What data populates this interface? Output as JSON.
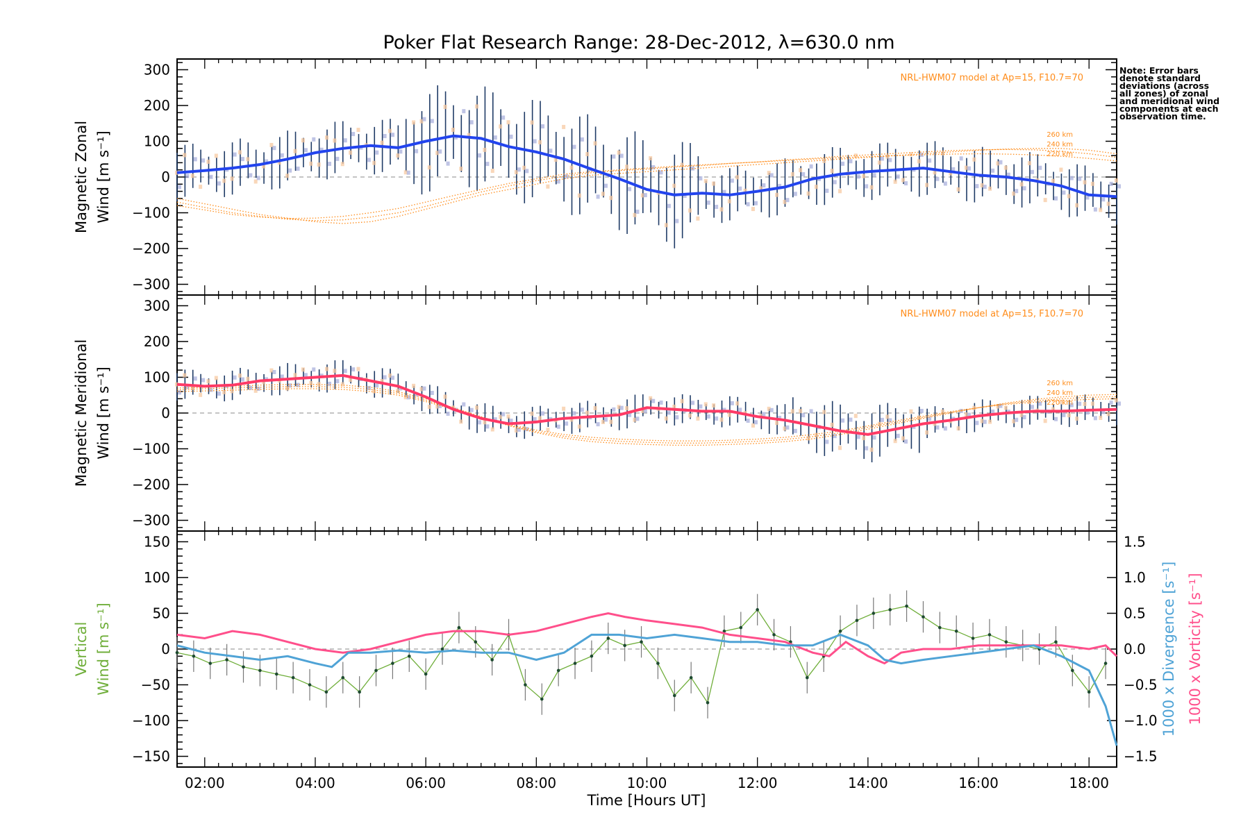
{
  "title": "Poker Flat Research Range: 28-Dec-2012, λ=630.0 nm",
  "note": "Note: Error bars denote standard deviations (across all zones) of zonal and meridional wind components at each observation time.",
  "colors": {
    "zonal": "#2244ee",
    "meridional": "#ff3a66",
    "vertical": "#6fae3a",
    "divergence": "#4fa3d6",
    "vorticity": "#ff4f8b",
    "model": "#ff8c1a",
    "errbar": "#1f3b66"
  },
  "xaxis": {
    "label": "Time [Hours UT]",
    "ticks": [
      "02:00",
      "04:00",
      "06:00",
      "08:00",
      "10:00",
      "12:00",
      "14:00",
      "16:00",
      "18:00"
    ]
  },
  "chart_data": [
    {
      "type": "line",
      "panel": "zonal",
      "ylabel_1": "Magnetic Zonal",
      "ylabel_2": "Wind [m s⁻¹]",
      "ylim": [
        -330,
        330
      ],
      "yticks": [
        "300",
        "200",
        "100",
        "0",
        "−100",
        "−200",
        "−300"
      ],
      "model_label": "NRL-HWM07 model at Ap=15, F10.7=70",
      "model_alt_labels": [
        "260 km",
        "240 km",
        "220 km"
      ],
      "x": [
        1.5,
        2,
        2.5,
        3,
        3.5,
        4,
        4.5,
        5,
        5.5,
        6,
        6.5,
        7,
        7.5,
        8,
        8.5,
        9,
        9.5,
        10,
        10.5,
        11,
        11.5,
        12,
        12.5,
        13,
        13.5,
        14,
        14.5,
        15,
        15.5,
        16,
        16.5,
        17,
        17.5,
        18,
        18.5
      ],
      "series": [
        {
          "values": [
            12,
            18,
            25,
            35,
            50,
            68,
            80,
            88,
            82,
            100,
            115,
            108,
            85,
            70,
            50,
            22,
            -5,
            -35,
            -50,
            -45,
            -50,
            -40,
            -28,
            -5,
            8,
            15,
            20,
            25,
            15,
            5,
            0,
            -10,
            -25,
            -50,
            -55
          ]
        }
      ],
      "model_series": [
        {
          "values": [
            -60,
            -75,
            -90,
            -105,
            -115,
            -125,
            -130,
            -125,
            -110,
            -90,
            -70,
            -50,
            -35,
            -20,
            -5,
            5,
            10,
            15,
            20,
            25,
            30,
            35,
            40,
            45,
            50,
            55,
            60,
            65,
            70,
            75,
            78,
            80,
            80,
            75,
            65
          ]
        },
        {
          "values": [
            -70,
            -85,
            -100,
            -110,
            -118,
            -122,
            -120,
            -112,
            -100,
            -82,
            -62,
            -42,
            -25,
            -10,
            2,
            12,
            18,
            22,
            28,
            32,
            38,
            42,
            48,
            52,
            58,
            62,
            66,
            70,
            74,
            76,
            77,
            76,
            72,
            65,
            55
          ]
        },
        {
          "values": [
            -80,
            -92,
            -105,
            -112,
            -116,
            -115,
            -110,
            -100,
            -88,
            -70,
            -52,
            -35,
            -18,
            -5,
            8,
            15,
            20,
            25,
            30,
            34,
            38,
            42,
            46,
            50,
            54,
            57,
            60,
            62,
            64,
            65,
            64,
            62,
            58,
            52,
            45
          ]
        }
      ]
    },
    {
      "type": "line",
      "panel": "meridional",
      "ylabel_1": "Magnetic Meridional",
      "ylabel_2": "Wind [m s⁻¹]",
      "ylim": [
        -330,
        330
      ],
      "yticks": [
        "300",
        "200",
        "100",
        "0",
        "−100",
        "−200",
        "−300"
      ],
      "model_label": "NRL-HWM07 model at Ap=15, F10.7=70",
      "model_alt_labels": [
        "260 km",
        "240 km",
        "220 km"
      ],
      "x": [
        1.5,
        2,
        2.5,
        3,
        3.5,
        4,
        4.5,
        5,
        5.5,
        6,
        6.5,
        7,
        7.5,
        8,
        8.5,
        9,
        9.5,
        10,
        10.5,
        11,
        11.5,
        12,
        12.5,
        13,
        13.5,
        14,
        14.5,
        15,
        15.5,
        16,
        16.5,
        17,
        17.5,
        18,
        18.5
      ],
      "series": [
        {
          "values": [
            80,
            75,
            78,
            90,
            95,
            100,
            105,
            90,
            75,
            45,
            10,
            -15,
            -30,
            -25,
            -15,
            -10,
            -5,
            15,
            10,
            5,
            5,
            -10,
            -20,
            -35,
            -50,
            -60,
            -45,
            -30,
            -20,
            -8,
            0,
            5,
            5,
            8,
            10
          ]
        }
      ],
      "model_series": [
        {
          "values": [
            70,
            72,
            75,
            78,
            80,
            80,
            78,
            72,
            60,
            40,
            15,
            -10,
            -35,
            -55,
            -70,
            -80,
            -85,
            -88,
            -90,
            -90,
            -88,
            -85,
            -80,
            -72,
            -60,
            -45,
            -30,
            -15,
            0,
            15,
            28,
            38,
            45,
            50,
            52
          ]
        },
        {
          "values": [
            65,
            68,
            70,
            72,
            74,
            74,
            72,
            66,
            55,
            36,
            12,
            -12,
            -35,
            -52,
            -65,
            -74,
            -79,
            -82,
            -84,
            -84,
            -82,
            -79,
            -74,
            -66,
            -55,
            -40,
            -26,
            -12,
            2,
            15,
            26,
            34,
            40,
            44,
            46
          ]
        },
        {
          "values": [
            60,
            62,
            64,
            66,
            68,
            68,
            66,
            60,
            50,
            32,
            10,
            -12,
            -32,
            -48,
            -60,
            -68,
            -73,
            -76,
            -78,
            -78,
            -76,
            -73,
            -68,
            -60,
            -50,
            -36,
            -22,
            -9,
            4,
            15,
            24,
            30,
            35,
            38,
            40
          ]
        }
      ]
    },
    {
      "type": "line",
      "panel": "vertical",
      "ylabel_1": "Vertical",
      "ylabel_2": "Wind [m s⁻¹]",
      "ylabel_right_1": "1000 x Divergence [s⁻¹]",
      "ylabel_right_2": "1000 x Vorticity [s⁻¹]",
      "ylim": [
        -165,
        165
      ],
      "y2lim": [
        -1.65,
        1.65
      ],
      "yticks": [
        "150",
        "100",
        "50",
        "0",
        "−50",
        "−100",
        "−150"
      ],
      "y2ticks": [
        "1.5",
        "1.0",
        "0.5",
        "0.0",
        "−0.5",
        "−1.0",
        "−1.5"
      ],
      "series": [
        {
          "name": "Vertical Wind",
          "x": [
            1.5,
            1.8,
            2.1,
            2.4,
            2.7,
            3.0,
            3.3,
            3.6,
            3.9,
            4.2,
            4.5,
            4.8,
            5.1,
            5.4,
            5.7,
            6.0,
            6.3,
            6.6,
            6.9,
            7.2,
            7.5,
            7.8,
            8.1,
            8.4,
            8.7,
            9.0,
            9.3,
            9.6,
            9.9,
            10.2,
            10.5,
            10.8,
            11.1,
            11.4,
            11.7,
            12.0,
            12.3,
            12.6,
            12.9,
            13.2,
            13.5,
            13.8,
            14.1,
            14.4,
            14.7,
            15.0,
            15.3,
            15.6,
            15.9,
            16.2,
            16.5,
            16.8,
            17.1,
            17.4,
            17.7,
            18.0,
            18.3
          ],
          "values": [
            -5,
            -10,
            -20,
            -15,
            -25,
            -30,
            -35,
            -40,
            -50,
            -60,
            -40,
            -60,
            -30,
            -20,
            -10,
            -35,
            0,
            30,
            10,
            -15,
            20,
            -50,
            -70,
            -30,
            -20,
            -10,
            15,
            5,
            10,
            -20,
            -65,
            -40,
            -75,
            25,
            30,
            55,
            20,
            10,
            -40,
            -10,
            25,
            40,
            50,
            55,
            60,
            45,
            30,
            25,
            15,
            20,
            10,
            5,
            0,
            10,
            -30,
            -60,
            -20
          ]
        },
        {
          "name": "Divergence",
          "x": [
            1.5,
            2.0,
            2.5,
            3.0,
            3.5,
            4.0,
            4.3,
            4.6,
            5.0,
            5.5,
            6.0,
            6.5,
            7.0,
            7.5,
            8.0,
            8.5,
            9.0,
            9.5,
            10.0,
            10.5,
            11.0,
            11.5,
            12.0,
            12.5,
            13.0,
            13.5,
            14.0,
            14.3,
            14.6,
            15.0,
            15.5,
            16.0,
            16.5,
            17.0,
            17.5,
            18.0,
            18.3,
            18.5
          ],
          "values": [
            0.05,
            -0.05,
            -0.1,
            -0.15,
            -0.1,
            -0.2,
            -0.25,
            -0.05,
            -0.05,
            -0.02,
            -0.05,
            -0.02,
            -0.05,
            -0.05,
            -0.15,
            -0.05,
            0.2,
            0.2,
            0.15,
            0.2,
            0.15,
            0.1,
            0.1,
            0.05,
            0.05,
            0.2,
            0.05,
            -0.15,
            -0.2,
            -0.15,
            -0.1,
            -0.05,
            0.0,
            0.05,
            -0.1,
            -0.3,
            -0.8,
            -1.35
          ]
        },
        {
          "name": "Vorticity",
          "x": [
            1.5,
            2.0,
            2.5,
            3.0,
            3.5,
            4.0,
            4.5,
            5.0,
            5.5,
            6.0,
            6.5,
            7.0,
            7.5,
            8.0,
            8.5,
            9.0,
            9.3,
            9.6,
            10.0,
            10.5,
            11.0,
            11.5,
            12.0,
            12.5,
            13.0,
            13.3,
            13.6,
            14.0,
            14.3,
            14.6,
            15.0,
            15.5,
            16.0,
            16.5,
            17.0,
            17.5,
            18.0,
            18.3,
            18.5
          ],
          "values": [
            0.2,
            0.15,
            0.25,
            0.2,
            0.1,
            0.0,
            -0.05,
            0.0,
            0.1,
            0.2,
            0.25,
            0.25,
            0.2,
            0.25,
            0.35,
            0.45,
            0.5,
            0.45,
            0.4,
            0.35,
            0.3,
            0.2,
            0.15,
            0.1,
            -0.05,
            -0.1,
            0.1,
            -0.1,
            -0.2,
            -0.05,
            0.0,
            0.0,
            0.05,
            0.05,
            0.05,
            0.05,
            0.0,
            0.05,
            -0.1
          ]
        }
      ]
    }
  ]
}
